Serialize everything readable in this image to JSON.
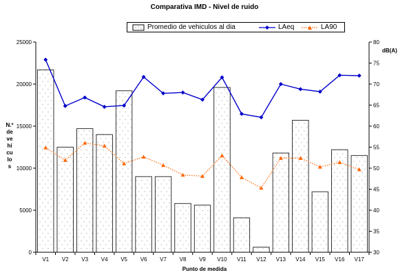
{
  "chart_data": {
    "type": "bar",
    "title": "Comparativa IMD - Nivel de ruido",
    "xlabel": "Punto de medida",
    "ylabel": "N.º de vehículos",
    "y2label": "dB(A)",
    "categories": [
      "V1",
      "V2",
      "V3",
      "V4",
      "V5",
      "V6",
      "V7",
      "V8",
      "V9",
      "V10",
      "V11",
      "V12",
      "V13",
      "V14",
      "V15",
      "V16",
      "V17"
    ],
    "ylim": [
      0,
      25000
    ],
    "y2lim": [
      30,
      80
    ],
    "yticks": [
      "0",
      "5000",
      "10000",
      "15000",
      "20000",
      "25000"
    ],
    "y2ticks": [
      "30",
      "35",
      "40",
      "45",
      "50",
      "55",
      "60",
      "65",
      "70",
      "75",
      "80"
    ],
    "legend_position": "top",
    "series": [
      {
        "name": "Promedio de vehiculos al dia",
        "type": "bar",
        "axis": "left",
        "color": "#ffffff",
        "values": [
          21700,
          12500,
          14700,
          14000,
          19200,
          9000,
          9000,
          5800,
          5600,
          19600,
          4100,
          600,
          11800,
          15700,
          7200,
          12200,
          11500
        ]
      },
      {
        "name": "LAeq",
        "type": "line",
        "axis": "right",
        "color": "#0000cc",
        "values": [
          75.8,
          64.8,
          66.8,
          64.6,
          64.9,
          71.7,
          67.8,
          68.0,
          66.3,
          71.6,
          62.9,
          62.1,
          70.0,
          68.8,
          68.2,
          72.1,
          72.0
        ]
      },
      {
        "name": "LA90",
        "type": "line",
        "axis": "right",
        "color": "#ff6600",
        "values": [
          54.9,
          51.9,
          56.0,
          55.3,
          51.1,
          52.7,
          50.7,
          48.4,
          48.1,
          53.0,
          47.8,
          45.3,
          52.4,
          52.4,
          50.3,
          51.4,
          49.7
        ]
      }
    ]
  }
}
